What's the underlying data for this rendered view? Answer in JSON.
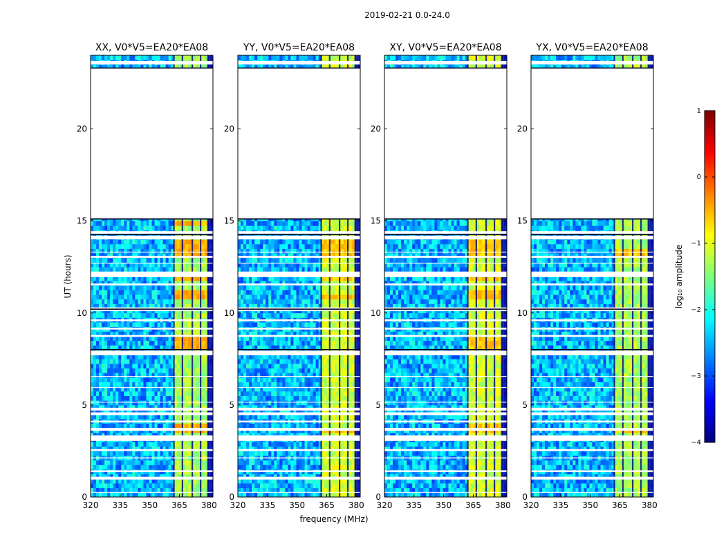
{
  "figure": {
    "suptitle": "2019-02-21 0.0-24.0",
    "xlabel": "frequency (MHz)",
    "ylabel": "UT (hours)"
  },
  "colors": {
    "cmap": [
      "#00007f",
      "#0000ff",
      "#007fff",
      "#00ffff",
      "#7fff7f",
      "#ffff00",
      "#ff7f00",
      "#ff0000",
      "#7f0000"
    ],
    "background": "#ffffff",
    "axis": "#000000"
  },
  "chart_data": {
    "type": "heatmap",
    "x": {
      "range": [
        320,
        382
      ],
      "ticks": [
        320,
        335,
        350,
        365,
        380
      ]
    },
    "y": {
      "range": [
        0,
        24
      ],
      "ticks": [
        0,
        5,
        10,
        15,
        20
      ]
    },
    "panels": [
      {
        "title": "XX, V0*V5=EA20*EA08",
        "band_level_main": -1.3,
        "band_level_hi": -0.5,
        "hot_intervals": [
          [
            3.4,
            4.0
          ],
          [
            8.0,
            8.6
          ],
          [
            10.6,
            11.2
          ],
          [
            11.7,
            12.0
          ],
          [
            12.9,
            14.0
          ],
          [
            14.7,
            15.0
          ]
        ]
      },
      {
        "title": "YY, V0*V5=EA20*EA08",
        "band_level_main": -1.1,
        "band_level_hi": -0.6,
        "hot_intervals": [
          [
            3.4,
            3.7
          ],
          [
            10.6,
            11.0
          ],
          [
            11.7,
            12.0
          ],
          [
            12.9,
            13.8
          ]
        ]
      },
      {
        "title": "XY, V0*V5=EA20*EA08",
        "band_level_main": -1.1,
        "band_level_hi": -0.6,
        "hot_intervals": [
          [
            3.4,
            4.0
          ],
          [
            8.0,
            8.6
          ],
          [
            10.6,
            11.2
          ],
          [
            11.7,
            12.0
          ],
          [
            12.9,
            13.9
          ]
        ]
      },
      {
        "title": "YX, V0*V5=EA20*EA08",
        "band_level_main": -1.3,
        "band_level_hi": -0.6,
        "hot_intervals": [
          [
            3.4,
            3.6
          ],
          [
            12.9,
            13.5
          ]
        ]
      }
    ],
    "background_level": -2.4,
    "band_mhz": [
      362,
      379
    ],
    "band_low_mhz": [
      362,
      380
    ],
    "channel_gaps_mhz": [
      362.2,
      366.5,
      371.5,
      375.7,
      379.4
    ],
    "flagged_columns_mhz": [
      [
        379.5,
        382
      ]
    ],
    "data_gaps_hours": [
      [
        0.95,
        1.1
      ],
      [
        1.35,
        1.45
      ],
      [
        2.1,
        2.15
      ],
      [
        2.5,
        2.6
      ],
      [
        3.05,
        3.35
      ],
      [
        3.6,
        3.75
      ],
      [
        4.05,
        4.15
      ],
      [
        4.45,
        4.6
      ],
      [
        4.7,
        4.85
      ],
      [
        7.7,
        7.95
      ],
      [
        8.7,
        8.8
      ],
      [
        9.1,
        9.2
      ],
      [
        9.55,
        9.65
      ],
      [
        10.1,
        10.3
      ],
      [
        11.5,
        11.6
      ],
      [
        11.95,
        12.25
      ],
      [
        13.0,
        13.1
      ],
      [
        14.0,
        14.2
      ],
      [
        14.3,
        14.45
      ],
      [
        15.1,
        23.3
      ],
      [
        23.5,
        23.7
      ]
    ],
    "thin_lines_hours": [
      0.25,
      5.15,
      5.95,
      6.55,
      12.7,
      13.3
    ],
    "colorbar": {
      "label": "log₁₀ amplitude",
      "range": [
        -4,
        1
      ],
      "ticks": [
        "1",
        "0",
        "−1",
        "−2",
        "−3",
        "−4"
      ],
      "tick_values": [
        1,
        0,
        -1,
        -2,
        -3,
        -4
      ]
    }
  }
}
